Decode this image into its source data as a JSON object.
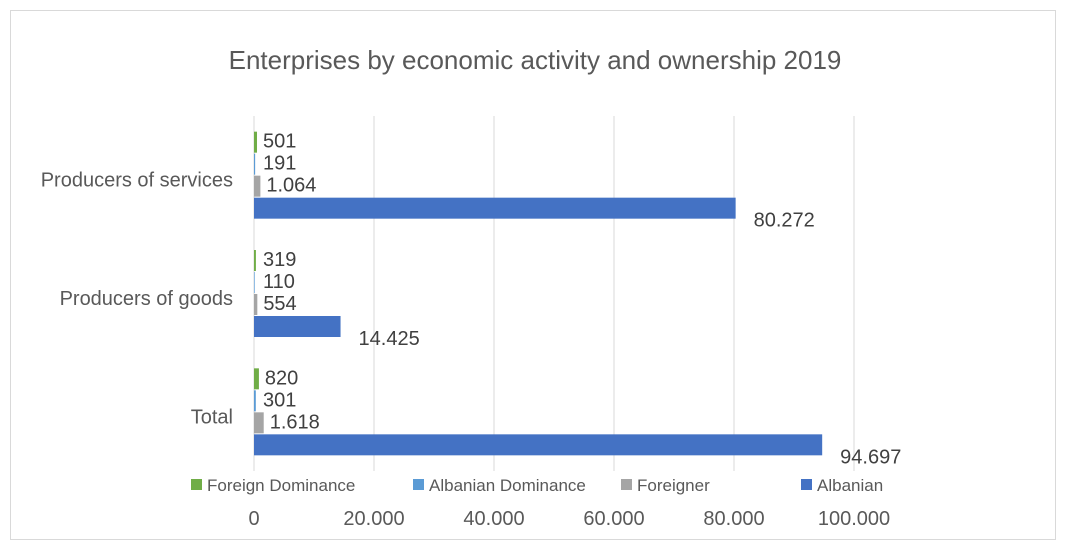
{
  "chart_data": {
    "type": "bar",
    "orientation": "horizontal",
    "title": "Enterprises by economic activity and ownership 2019",
    "xlabel": "",
    "ylabel": "",
    "xlim": [
      0,
      100000
    ],
    "x_ticks": [
      0,
      20000,
      40000,
      60000,
      80000,
      100000
    ],
    "x_tick_labels": [
      "0",
      "20.000",
      "40.000",
      "60.000",
      "80.000",
      "100.000"
    ],
    "grid": true,
    "legend_position": "bottom",
    "categories": [
      "Producers of services",
      "Producers of goods",
      "Total"
    ],
    "series": [
      {
        "name": "Foreign Dominance",
        "color": "#70ad47",
        "values": [
          501,
          319,
          820
        ],
        "labels": [
          "501",
          "319",
          "820"
        ]
      },
      {
        "name": "Albanian Dominance",
        "color": "#5b9bd5",
        "values": [
          191,
          110,
          301
        ],
        "labels": [
          "191",
          "110",
          "301"
        ]
      },
      {
        "name": "Foreigner",
        "color": "#a5a5a5",
        "values": [
          1064,
          554,
          1618
        ],
        "labels": [
          "1.064",
          "554",
          "1.618"
        ]
      },
      {
        "name": "Albanian",
        "color": "#4472c4",
        "values": [
          80272,
          14425,
          94697
        ],
        "labels": [
          "80.272",
          "14.425",
          "94.697"
        ]
      }
    ]
  }
}
